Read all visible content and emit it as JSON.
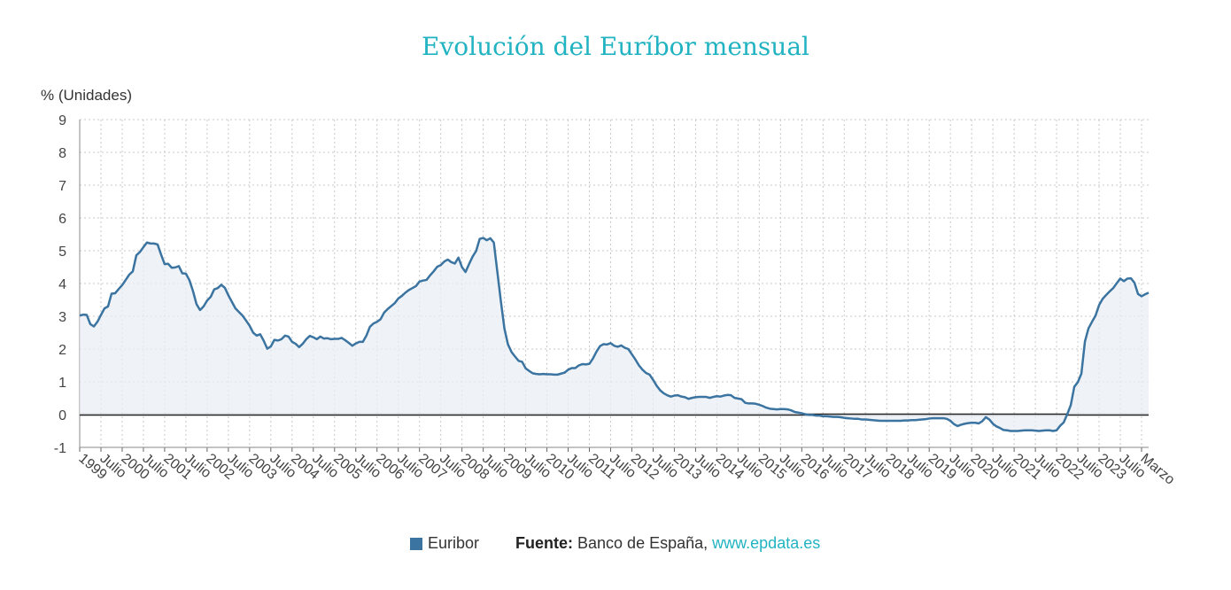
{
  "chart_data": {
    "type": "area",
    "title": "Evolución del Euríbor mensual",
    "ylabel": "% (Unidades)",
    "ylim": [
      -1,
      9
    ],
    "yticks": [
      "9",
      "8",
      "7",
      "6",
      "5",
      "4",
      "3",
      "2",
      "1",
      "0",
      "-1"
    ],
    "x_tick_labels": [
      "1999",
      "Julio",
      "2000",
      "Julio",
      "2001",
      "Julio",
      "2002",
      "Julio",
      "2003",
      "Julio",
      "2004",
      "Julio",
      "2005",
      "Julio",
      "2006",
      "Julio",
      "2007",
      "Julio",
      "2008",
      "Julio",
      "2009",
      "Julio",
      "2010",
      "Julio",
      "2011",
      "Julio",
      "2012",
      "Julio",
      "2013",
      "Julio",
      "2014",
      "Julio",
      "2015",
      "Julio",
      "2016",
      "Julio",
      "2017",
      "Julio",
      "2018",
      "Julio",
      "2019",
      "Julio",
      "2020",
      "Julio",
      "2021",
      "Julio",
      "2022",
      "Julio",
      "2023",
      "Julio",
      "Marzo"
    ],
    "x_start": "1999-01",
    "x_end": "2024-03",
    "grid": true,
    "legend_position": "bottom",
    "series": [
      {
        "name": "Euribor",
        "color": "#3b74a0",
        "values": [
          3.02,
          3.05,
          3.04,
          2.76,
          2.69,
          2.83,
          3.04,
          3.24,
          3.3,
          3.69,
          3.7,
          3.83,
          3.95,
          4.11,
          4.27,
          4.37,
          4.86,
          4.96,
          5.11,
          5.25,
          5.22,
          5.22,
          5.19,
          4.88,
          4.59,
          4.6,
          4.48,
          4.49,
          4.53,
          4.31,
          4.3,
          4.1,
          3.77,
          3.37,
          3.19,
          3.3,
          3.48,
          3.59,
          3.82,
          3.86,
          3.96,
          3.87,
          3.64,
          3.44,
          3.24,
          3.13,
          3.02,
          2.87,
          2.71,
          2.5,
          2.41,
          2.45,
          2.25,
          2.01,
          2.08,
          2.28,
          2.26,
          2.3,
          2.41,
          2.38,
          2.22,
          2.16,
          2.06,
          2.16,
          2.3,
          2.4,
          2.36,
          2.3,
          2.38,
          2.32,
          2.33,
          2.3,
          2.31,
          2.31,
          2.34,
          2.27,
          2.19,
          2.1,
          2.17,
          2.22,
          2.22,
          2.41,
          2.68,
          2.78,
          2.83,
          2.91,
          3.11,
          3.22,
          3.31,
          3.4,
          3.54,
          3.62,
          3.72,
          3.8,
          3.86,
          3.92,
          4.06,
          4.09,
          4.11,
          4.25,
          4.37,
          4.51,
          4.56,
          4.67,
          4.73,
          4.65,
          4.61,
          4.79,
          4.5,
          4.35,
          4.59,
          4.82,
          4.99,
          5.36,
          5.39,
          5.32,
          5.38,
          5.25,
          4.35,
          3.45,
          2.62,
          2.14,
          1.91,
          1.77,
          1.64,
          1.61,
          1.41,
          1.33,
          1.26,
          1.24,
          1.23,
          1.24,
          1.23,
          1.23,
          1.22,
          1.22,
          1.25,
          1.28,
          1.37,
          1.42,
          1.42,
          1.5,
          1.54,
          1.53,
          1.55,
          1.71,
          1.92,
          2.09,
          2.15,
          2.14,
          2.18,
          2.1,
          2.07,
          2.11,
          2.04,
          2.0,
          1.84,
          1.68,
          1.5,
          1.37,
          1.27,
          1.22,
          1.06,
          0.88,
          0.74,
          0.65,
          0.59,
          0.55,
          0.58,
          0.59,
          0.55,
          0.53,
          0.48,
          0.51,
          0.53,
          0.54,
          0.54,
          0.54,
          0.51,
          0.54,
          0.56,
          0.55,
          0.58,
          0.6,
          0.59,
          0.51,
          0.49,
          0.47,
          0.36,
          0.34,
          0.34,
          0.33,
          0.3,
          0.26,
          0.21,
          0.18,
          0.17,
          0.16,
          0.17,
          0.17,
          0.16,
          0.13,
          0.08,
          0.06,
          0.04,
          0.01,
          -0.01,
          -0.01,
          -0.03,
          -0.03,
          -0.05,
          -0.05,
          -0.06,
          -0.07,
          -0.07,
          -0.08,
          -0.1,
          -0.11,
          -0.12,
          -0.13,
          -0.13,
          -0.15,
          -0.15,
          -0.16,
          -0.17,
          -0.18,
          -0.19,
          -0.19,
          -0.19,
          -0.19,
          -0.19,
          -0.19,
          -0.19,
          -0.18,
          -0.18,
          -0.17,
          -0.17,
          -0.16,
          -0.15,
          -0.14,
          -0.12,
          -0.11,
          -0.11,
          -0.11,
          -0.11,
          -0.13,
          -0.19,
          -0.29,
          -0.35,
          -0.31,
          -0.28,
          -0.26,
          -0.25,
          -0.25,
          -0.27,
          -0.2,
          -0.08,
          -0.15,
          -0.28,
          -0.36,
          -0.41,
          -0.47,
          -0.48,
          -0.5,
          -0.5,
          -0.5,
          -0.49,
          -0.48,
          -0.48,
          -0.48,
          -0.49,
          -0.5,
          -0.49,
          -0.48,
          -0.48,
          -0.5,
          -0.48,
          -0.34,
          -0.24,
          0.01,
          0.29,
          0.85,
          0.99,
          1.25,
          2.23,
          2.63,
          2.83,
          3.02,
          3.34,
          3.53,
          3.65,
          3.76,
          3.86,
          4.01,
          4.15,
          4.07,
          4.15,
          4.16,
          4.02,
          3.68,
          3.61,
          3.67,
          3.72
        ]
      }
    ],
    "baseline_value": 0,
    "legend": {
      "label": "Euribor",
      "swatch_color": "#3b74a0"
    },
    "source": {
      "prefix": "Fuente:",
      "text": "Banco de España,",
      "link": "www.epdata.es"
    }
  }
}
